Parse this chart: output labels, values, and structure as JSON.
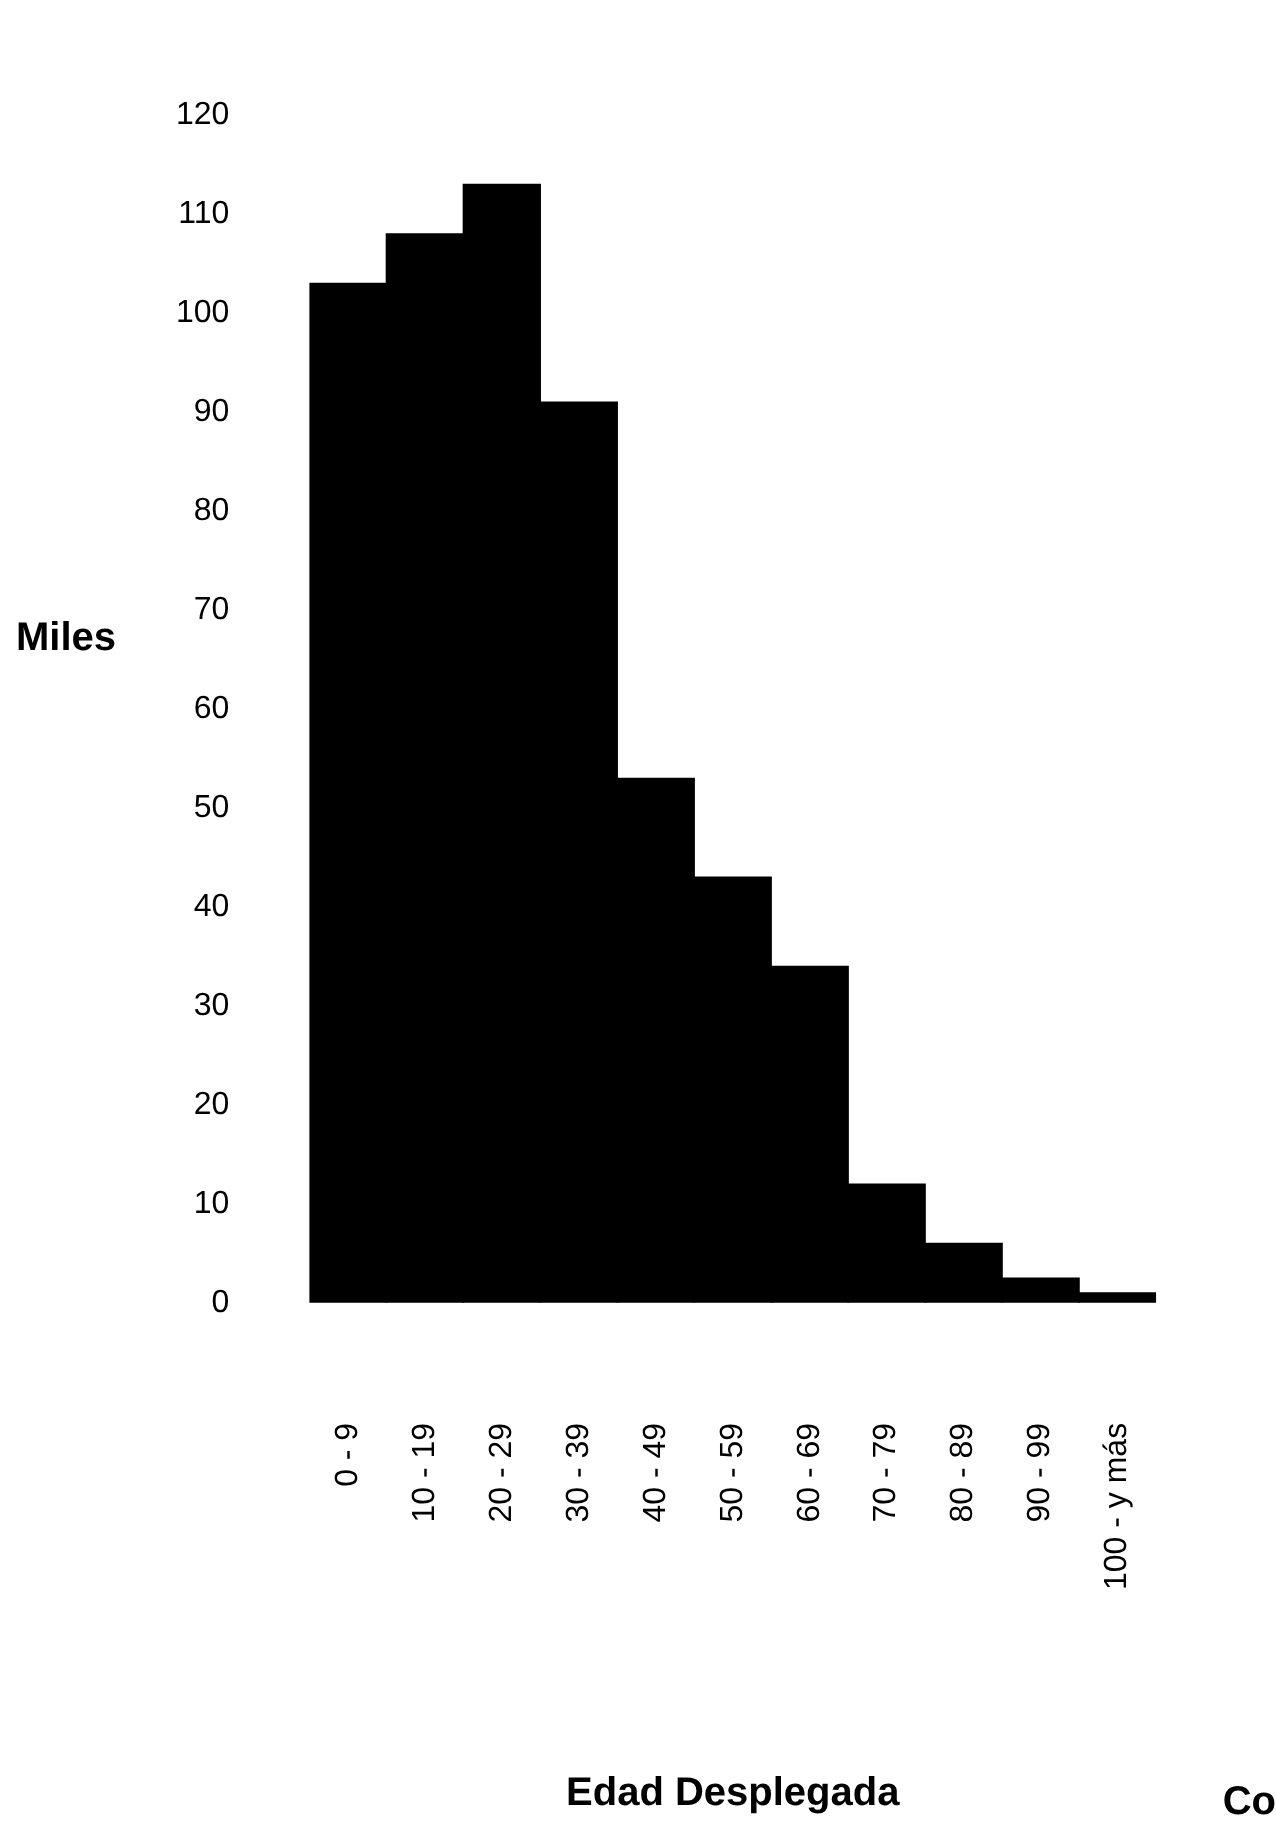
{
  "chart_data": {
    "type": "bar",
    "ylabel": "Miles",
    "xlabel": "Edad Desplegada",
    "annotations": [
      "Co"
    ],
    "categories": [
      "0 - 9",
      "10 - 19",
      "20 - 29",
      "30 - 39",
      "40 - 49",
      "50 - 59",
      "60 - 69",
      "70 - 79",
      "80 - 89",
      "90 - 99",
      "100 - y más"
    ],
    "values": [
      103,
      108,
      113,
      91,
      53,
      43,
      34,
      12,
      6,
      2.5,
      1
    ],
    "color": "#000000",
    "ylim": [
      0,
      120
    ],
    "yticks": [
      0,
      10,
      20,
      30,
      40,
      50,
      60,
      70,
      80,
      90,
      100,
      110,
      120
    ],
    "grid": false,
    "legend": false
  }
}
